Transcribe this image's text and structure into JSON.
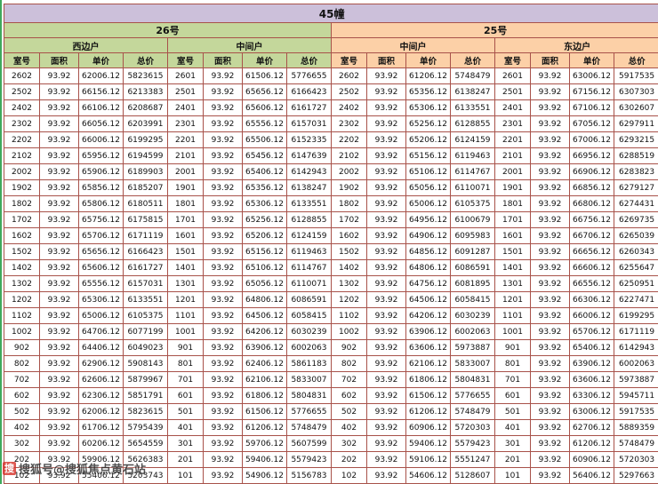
{
  "watermark": {
    "logo_char": "搜",
    "text": "搜狐号@搜狐焦点黄石站"
  },
  "colors": {
    "title_bg": "#ccc0da",
    "section_26_bg": "#c4d79b",
    "section_25_bg": "#fcd0a7",
    "grid_border": "#a8524a"
  },
  "chart_data": {
    "type": "table",
    "title": "45幢",
    "sections": [
      "26号",
      "25号"
    ],
    "columns": [
      "室号",
      "面积",
      "单价",
      "总价"
    ],
    "groups": [
      {
        "section": "26号",
        "unit_type": "西边户",
        "rows": [
          [
            "2602",
            "93.92",
            "62006.12",
            "5823615"
          ],
          [
            "2502",
            "93.92",
            "66156.12",
            "6213383"
          ],
          [
            "2402",
            "93.92",
            "66106.12",
            "6208687"
          ],
          [
            "2302",
            "93.92",
            "66056.12",
            "6203991"
          ],
          [
            "2202",
            "93.92",
            "66006.12",
            "6199295"
          ],
          [
            "2102",
            "93.92",
            "65956.12",
            "6194599"
          ],
          [
            "2002",
            "93.92",
            "65906.12",
            "6189903"
          ],
          [
            "1902",
            "93.92",
            "65856.12",
            "6185207"
          ],
          [
            "1802",
            "93.92",
            "65806.12",
            "6180511"
          ],
          [
            "1702",
            "93.92",
            "65756.12",
            "6175815"
          ],
          [
            "1602",
            "93.92",
            "65706.12",
            "6171119"
          ],
          [
            "1502",
            "93.92",
            "65656.12",
            "6166423"
          ],
          [
            "1402",
            "93.92",
            "65606.12",
            "6161727"
          ],
          [
            "1302",
            "93.92",
            "65556.12",
            "6157031"
          ],
          [
            "1202",
            "93.92",
            "65306.12",
            "6133551"
          ],
          [
            "1102",
            "93.92",
            "65006.12",
            "6105375"
          ],
          [
            "1002",
            "93.92",
            "64706.12",
            "6077199"
          ],
          [
            "902",
            "93.92",
            "64406.12",
            "6049023"
          ],
          [
            "802",
            "93.92",
            "62906.12",
            "5908143"
          ],
          [
            "702",
            "93.92",
            "62606.12",
            "5879967"
          ],
          [
            "602",
            "93.92",
            "62306.12",
            "5851791"
          ],
          [
            "502",
            "93.92",
            "62006.12",
            "5823615"
          ],
          [
            "402",
            "93.92",
            "61706.12",
            "5795439"
          ],
          [
            "302",
            "93.92",
            "60206.12",
            "5654559"
          ],
          [
            "202",
            "93.92",
            "59906.12",
            "5626383"
          ],
          [
            "102",
            "93.92",
            "55406.12",
            "5203743"
          ]
        ]
      },
      {
        "section": "26号",
        "unit_type": "中间户",
        "rows": [
          [
            "2601",
            "93.92",
            "61506.12",
            "5776655"
          ],
          [
            "2501",
            "93.92",
            "65656.12",
            "6166423"
          ],
          [
            "2401",
            "93.92",
            "65606.12",
            "6161727"
          ],
          [
            "2301",
            "93.92",
            "65556.12",
            "6157031"
          ],
          [
            "2201",
            "93.92",
            "65506.12",
            "6152335"
          ],
          [
            "2101",
            "93.92",
            "65456.12",
            "6147639"
          ],
          [
            "2001",
            "93.92",
            "65406.12",
            "6142943"
          ],
          [
            "1901",
            "93.92",
            "65356.12",
            "6138247"
          ],
          [
            "1801",
            "93.92",
            "65306.12",
            "6133551"
          ],
          [
            "1701",
            "93.92",
            "65256.12",
            "6128855"
          ],
          [
            "1601",
            "93.92",
            "65206.12",
            "6124159"
          ],
          [
            "1501",
            "93.92",
            "65156.12",
            "6119463"
          ],
          [
            "1401",
            "93.92",
            "65106.12",
            "6114767"
          ],
          [
            "1301",
            "93.92",
            "65056.12",
            "6110071"
          ],
          [
            "1201",
            "93.92",
            "64806.12",
            "6086591"
          ],
          [
            "1101",
            "93.92",
            "64506.12",
            "6058415"
          ],
          [
            "1001",
            "93.92",
            "64206.12",
            "6030239"
          ],
          [
            "901",
            "93.92",
            "63906.12",
            "6002063"
          ],
          [
            "801",
            "93.92",
            "62406.12",
            "5861183"
          ],
          [
            "701",
            "93.92",
            "62106.12",
            "5833007"
          ],
          [
            "601",
            "93.92",
            "61806.12",
            "5804831"
          ],
          [
            "501",
            "93.92",
            "61506.12",
            "5776655"
          ],
          [
            "401",
            "93.92",
            "61206.12",
            "5748479"
          ],
          [
            "301",
            "93.92",
            "59706.12",
            "5607599"
          ],
          [
            "201",
            "93.92",
            "59406.12",
            "5579423"
          ],
          [
            "101",
            "93.92",
            "54906.12",
            "5156783"
          ]
        ]
      },
      {
        "section": "25号",
        "unit_type": "中间户",
        "rows": [
          [
            "2602",
            "93.92",
            "61206.12",
            "5748479"
          ],
          [
            "2502",
            "93.92",
            "65356.12",
            "6138247"
          ],
          [
            "2402",
            "93.92",
            "65306.12",
            "6133551"
          ],
          [
            "2302",
            "93.92",
            "65256.12",
            "6128855"
          ],
          [
            "2202",
            "93.92",
            "65206.12",
            "6124159"
          ],
          [
            "2102",
            "93.92",
            "65156.12",
            "6119463"
          ],
          [
            "2002",
            "93.92",
            "65106.12",
            "6114767"
          ],
          [
            "1902",
            "93.92",
            "65056.12",
            "6110071"
          ],
          [
            "1802",
            "93.92",
            "65006.12",
            "6105375"
          ],
          [
            "1702",
            "93.92",
            "64956.12",
            "6100679"
          ],
          [
            "1602",
            "93.92",
            "64906.12",
            "6095983"
          ],
          [
            "1502",
            "93.92",
            "64856.12",
            "6091287"
          ],
          [
            "1402",
            "93.92",
            "64806.12",
            "6086591"
          ],
          [
            "1302",
            "93.92",
            "64756.12",
            "6081895"
          ],
          [
            "1202",
            "93.92",
            "64506.12",
            "6058415"
          ],
          [
            "1102",
            "93.92",
            "64206.12",
            "6030239"
          ],
          [
            "1002",
            "93.92",
            "63906.12",
            "6002063"
          ],
          [
            "902",
            "93.92",
            "63606.12",
            "5973887"
          ],
          [
            "802",
            "93.92",
            "62106.12",
            "5833007"
          ],
          [
            "702",
            "93.92",
            "61806.12",
            "5804831"
          ],
          [
            "602",
            "93.92",
            "61506.12",
            "5776655"
          ],
          [
            "502",
            "93.92",
            "61206.12",
            "5748479"
          ],
          [
            "402",
            "93.92",
            "60906.12",
            "5720303"
          ],
          [
            "302",
            "93.92",
            "59406.12",
            "5579423"
          ],
          [
            "202",
            "93.92",
            "59106.12",
            "5551247"
          ],
          [
            "102",
            "93.92",
            "54606.12",
            "5128607"
          ]
        ]
      },
      {
        "section": "25号",
        "unit_type": "东边户",
        "rows": [
          [
            "2601",
            "93.92",
            "63006.12",
            "5917535"
          ],
          [
            "2501",
            "93.92",
            "67156.12",
            "6307303"
          ],
          [
            "2401",
            "93.92",
            "67106.12",
            "6302607"
          ],
          [
            "2301",
            "93.92",
            "67056.12",
            "6297911"
          ],
          [
            "2201",
            "93.92",
            "67006.12",
            "6293215"
          ],
          [
            "2101",
            "93.92",
            "66956.12",
            "6288519"
          ],
          [
            "2001",
            "93.92",
            "66906.12",
            "6283823"
          ],
          [
            "1901",
            "93.92",
            "66856.12",
            "6279127"
          ],
          [
            "1801",
            "93.92",
            "66806.12",
            "6274431"
          ],
          [
            "1701",
            "93.92",
            "66756.12",
            "6269735"
          ],
          [
            "1601",
            "93.92",
            "66706.12",
            "6265039"
          ],
          [
            "1501",
            "93.92",
            "66656.12",
            "6260343"
          ],
          [
            "1401",
            "93.92",
            "66606.12",
            "6255647"
          ],
          [
            "1301",
            "93.92",
            "66556.12",
            "6250951"
          ],
          [
            "1201",
            "93.92",
            "66306.12",
            "6227471"
          ],
          [
            "1101",
            "93.92",
            "66006.12",
            "6199295"
          ],
          [
            "1001",
            "93.92",
            "65706.12",
            "6171119"
          ],
          [
            "901",
            "93.92",
            "65406.12",
            "6142943"
          ],
          [
            "801",
            "93.92",
            "63906.12",
            "6002063"
          ],
          [
            "701",
            "93.92",
            "63606.12",
            "5973887"
          ],
          [
            "601",
            "93.92",
            "63306.12",
            "5945711"
          ],
          [
            "501",
            "93.92",
            "63006.12",
            "5917535"
          ],
          [
            "401",
            "93.92",
            "62706.12",
            "5889359"
          ],
          [
            "301",
            "93.92",
            "61206.12",
            "5748479"
          ],
          [
            "201",
            "93.92",
            "60906.12",
            "5720303"
          ],
          [
            "101",
            "93.92",
            "56406.12",
            "5297663"
          ]
        ]
      }
    ]
  }
}
